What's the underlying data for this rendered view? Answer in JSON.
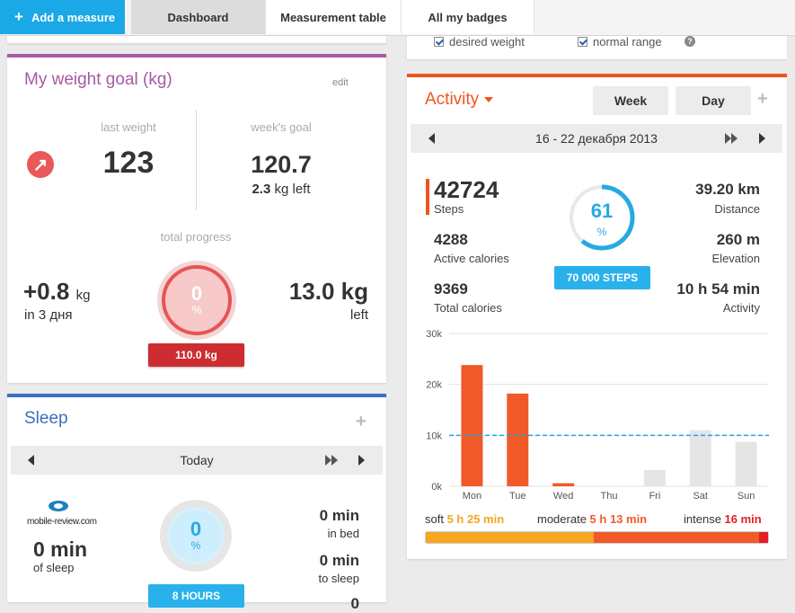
{
  "nav": {
    "add_label": "Add a measure",
    "tabs": [
      {
        "label": "Dashboard",
        "active": true
      },
      {
        "label": "Measurement table",
        "active": false
      },
      {
        "label": "All my badges",
        "active": false
      }
    ]
  },
  "legend": {
    "desired_weight": "desired weight",
    "normal_range": "normal range",
    "help": "?"
  },
  "weight_goal": {
    "title": "My weight goal (kg)",
    "edit": "edit",
    "last_weight_label": "last weight",
    "last_weight": "123",
    "weeks_goal_label": "week's goal",
    "weeks_goal": "120.7",
    "left_value": "2.3",
    "left_text": "kg left",
    "total_progress_label": "total progress",
    "change_value": "+0.8",
    "change_unit": "kg",
    "change_period": "in 3 дня",
    "progress_pct": "0",
    "pct_symbol": "%",
    "target_badge": "110.0 kg",
    "remaining_value": "13.0 kg",
    "remaining_label": "left",
    "colors": {
      "accent": "#a65ba3",
      "ring": "#e85454"
    }
  },
  "sleep": {
    "title": "Sleep",
    "plus": "+",
    "date": "Today",
    "logo_text": "mobile-review.com",
    "sleep_value": "0 min",
    "sleep_label": "of sleep",
    "progress_pct": "0",
    "pct_symbol": "%",
    "goal_badge": "8 HOURS",
    "in_bed_value": "0 min",
    "in_bed_label": "in bed",
    "to_sleep_value": "0 min",
    "to_sleep_label": "to sleep",
    "next_value": "0",
    "colors": {
      "accent": "#3a6fbf"
    }
  },
  "activity": {
    "title": "Activity",
    "week_label": "Week",
    "day_label": "Day",
    "plus": "+",
    "date_range": "16 - 22 декабря 2013",
    "steps_value": "42724",
    "steps_label": "Steps",
    "active_cal_value": "4288",
    "active_cal_label": "Active calories",
    "total_cal_value": "9369",
    "total_cal_label": "Total calories",
    "ring_pct": "61",
    "pct_symbol": "%",
    "goal_badge": "70 000 STEPS",
    "distance_value": "39.20 km",
    "distance_label": "Distance",
    "elevation_value": "260 m",
    "elevation_label": "Elevation",
    "activity_value": "10 h 54 min",
    "activity_label": "Activity",
    "intensity": {
      "soft_label": "soft",
      "soft_value": "5 h 25 min",
      "moderate_label": "moderate",
      "moderate_value": "5 h 13 min",
      "intense_label": "intense",
      "intense_value": "16 min",
      "soft_fraction": 0.49,
      "moderate_fraction": 0.485,
      "intense_fraction": 0.025
    },
    "colors": {
      "accent": "#f0531c",
      "soft": "#f6a623",
      "moderate": "#f05a28",
      "intense": "#e31e24"
    }
  },
  "chart_data": {
    "type": "bar",
    "categories": [
      "Mon",
      "Tue",
      "Wed",
      "Thu",
      "Fri",
      "Sat",
      "Sun"
    ],
    "values": [
      23800,
      18200,
      600,
      0,
      3200,
      11000,
      8700
    ],
    "y_ticks": [
      "0k",
      "10k",
      "20k",
      "30k"
    ],
    "ylim": [
      0,
      30000
    ],
    "goal_line": 10000,
    "bar_colors": [
      "#f05a28",
      "#f05a28",
      "#f05a28",
      "#f05a28",
      "#e5e5e5",
      "#e5e5e5",
      "#e5e5e5"
    ],
    "grid": true
  }
}
